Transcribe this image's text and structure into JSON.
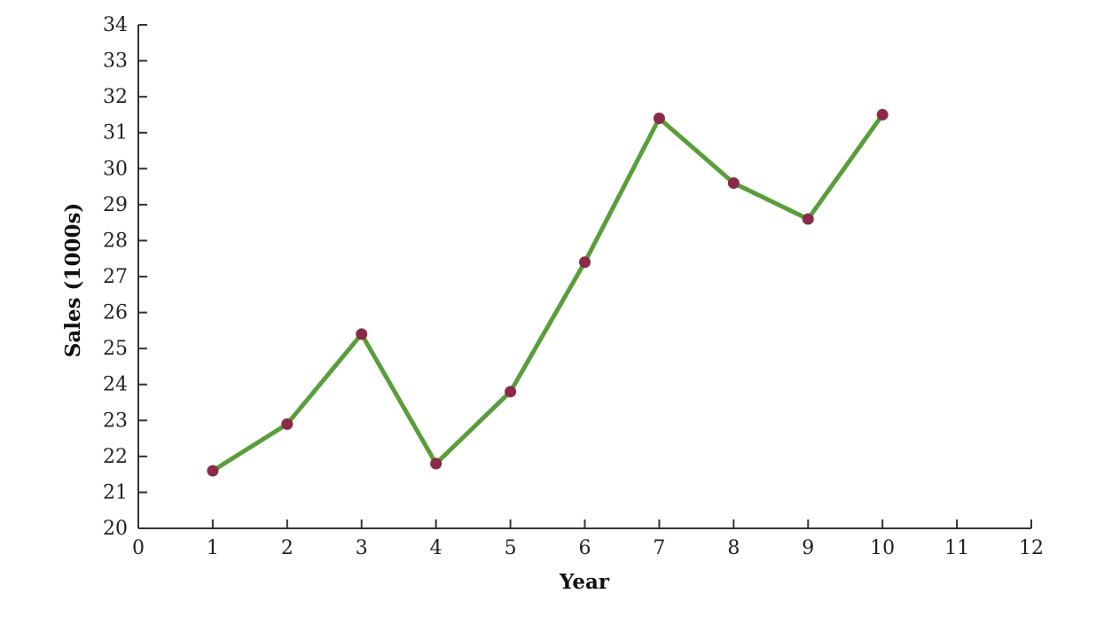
{
  "chart_data": {
    "type": "line",
    "title": "",
    "xlabel": "Year",
    "ylabel": "Sales (1000s)",
    "xlim": [
      0,
      12
    ],
    "ylim": [
      20,
      34
    ],
    "x_ticks": [
      0,
      1,
      2,
      3,
      4,
      5,
      6,
      7,
      8,
      9,
      10,
      11,
      12
    ],
    "y_ticks": [
      20,
      21,
      22,
      23,
      24,
      25,
      26,
      27,
      28,
      29,
      30,
      31,
      32,
      33,
      34
    ],
    "grid": false,
    "legend": "none",
    "series": [
      {
        "x": [
          1,
          2,
          3,
          4,
          5,
          6,
          7,
          8,
          9,
          10
        ],
        "values": [
          21.6,
          22.9,
          25.4,
          21.8,
          23.8,
          27.4,
          31.4,
          29.6,
          28.6,
          31.5
        ],
        "line_color": "#5a9e3c",
        "marker_color": "#8b2a48"
      }
    ]
  }
}
